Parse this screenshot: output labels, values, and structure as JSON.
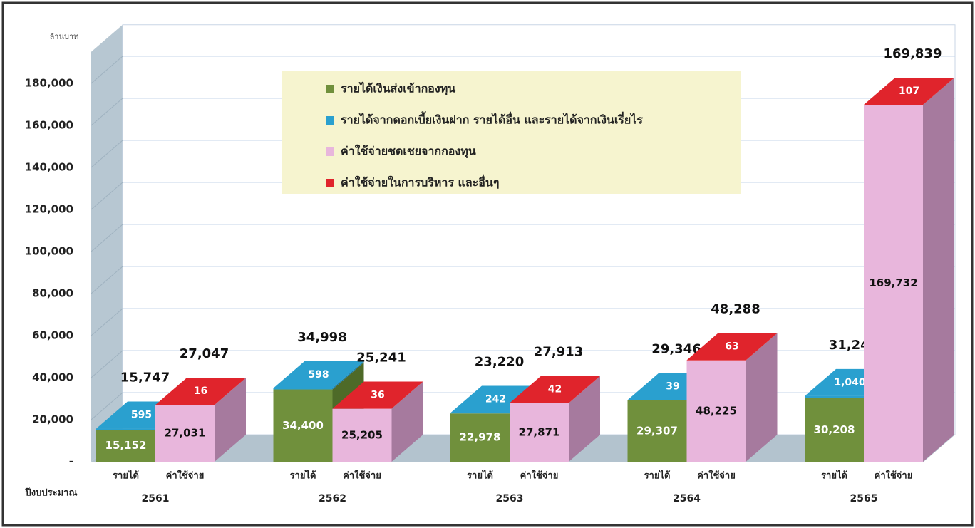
{
  "chart_data": {
    "type": "bar3d_stacked",
    "y_label": "ล้านบาท",
    "x_label": "ปีงบประมาณ",
    "categories": [
      "2561",
      "2562",
      "2563",
      "2564",
      "2565"
    ],
    "stacks": [
      {
        "name": "รายได้",
        "series": [
          {
            "name": "รายได้เงินส่งเข้ากองทุน",
            "color": "#70903c",
            "side_color": "#4e6a28",
            "values": [
              15152,
              34400,
              22978,
              29307,
              30208
            ],
            "value_labels": [
              "15,152",
              "34,400",
              "22,978",
              "29,307",
              "30,208"
            ]
          },
          {
            "name": "รายได้จากดอกเบี้ยเงินฝาก รายได้อื่น และรายได้จากเงินเรี่ยไร",
            "color": "#2aa0cf",
            "side_color": "#1c7aa0",
            "values": [
              595,
              598,
              242,
              39,
              1040
            ],
            "value_labels": [
              "595",
              "598",
              "242",
              "39",
              "1,040"
            ]
          }
        ],
        "totals": [
          15747,
          34998,
          23220,
          29346,
          31248
        ],
        "total_labels": [
          "15,747",
          "34,998",
          "23,220",
          "29,346",
          "31,248"
        ]
      },
      {
        "name": "ค่าใช้จ่าย",
        "series": [
          {
            "name": "ค่าใช้จ่ายชดเชยจากกองทุน",
            "color": "#e8b6dc",
            "side_color": "#a67a9e",
            "values": [
              27031,
              25205,
              27871,
              48225,
              169732
            ],
            "value_labels": [
              "27,031",
              "25,205",
              "27,871",
              "48,225",
              "169,732"
            ]
          },
          {
            "name": "ค่าใช้จ่ายในการบริหาร และอื่นๆ",
            "color": "#e0242c",
            "side_color": "#a81820",
            "values": [
              16,
              36,
              42,
              63,
              107
            ],
            "value_labels": [
              "16",
              "36",
              "42",
              "63",
              "107"
            ]
          }
        ],
        "totals": [
          27047,
          25241,
          27913,
          48288,
          169839
        ],
        "total_labels": [
          "27,047",
          "25,241",
          "27,913",
          "48,288",
          "169,839"
        ]
      }
    ],
    "ylim": [
      0,
      195000
    ],
    "yticks": [
      {
        "value": 0,
        "label": "-"
      },
      {
        "value": 20000,
        "label": "20,000"
      },
      {
        "value": 40000,
        "label": "40,000"
      },
      {
        "value": 60000,
        "label": "60,000"
      },
      {
        "value": 80000,
        "label": "80,000"
      },
      {
        "value": 100000,
        "label": "100,000"
      },
      {
        "value": 120000,
        "label": "120,000"
      },
      {
        "value": 140000,
        "label": "140,000"
      },
      {
        "value": 160000,
        "label": "160,000"
      },
      {
        "value": 180000,
        "label": "180,000"
      }
    ],
    "grid": true,
    "legend": "top"
  }
}
